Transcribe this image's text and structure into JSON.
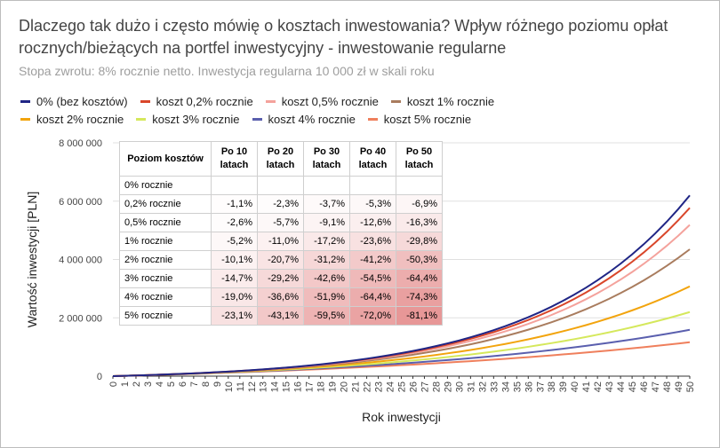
{
  "chart_data": {
    "type": "line",
    "title": "Dlaczego tak dużo i często mówię o kosztach inwestowania? Wpływ różnego poziomu opłat rocznych/bieżących na portfel inwestycyjny - inwestowanie regularne",
    "subtitle": "Stopa zwrotu: 8% rocznie netto. Inwestycja regularna 10 000 zł w skali roku",
    "x_label": "Rok inwestycji",
    "y_label": "Wartość inwestycji [PLN]",
    "x": [
      0,
      1,
      2,
      3,
      4,
      5,
      6,
      7,
      8,
      9,
      10,
      11,
      12,
      13,
      14,
      15,
      16,
      17,
      18,
      19,
      20,
      21,
      22,
      23,
      24,
      25,
      26,
      27,
      28,
      29,
      30,
      31,
      32,
      33,
      34,
      35,
      36,
      37,
      38,
      39,
      40,
      41,
      42,
      43,
      44,
      45,
      46,
      47,
      48,
      49,
      50
    ],
    "xlim": [
      0,
      50
    ],
    "xticks": [
      0,
      1,
      2,
      3,
      4,
      5,
      6,
      7,
      8,
      9,
      10,
      11,
      12,
      13,
      14,
      15,
      16,
      17,
      18,
      19,
      20,
      21,
      22,
      23,
      24,
      25,
      26,
      27,
      28,
      29,
      30,
      31,
      32,
      33,
      34,
      35,
      36,
      37,
      38,
      39,
      40,
      41,
      42,
      43,
      44,
      45,
      46,
      47,
      48,
      49,
      50
    ],
    "ylim": [
      0,
      8000000
    ],
    "yticks": [
      0,
      {
        "value": 2000000,
        "label": "2 000 000"
      },
      {
        "value": 4000000,
        "label": "4 000 000"
      },
      {
        "value": 6000000,
        "label": "6 000 000"
      },
      {
        "value": 8000000,
        "label": "8 000 000"
      }
    ],
    "grid": true,
    "legend": "top",
    "series": [
      {
        "name": "0% (bez kosztów)",
        "color": "#1f2585",
        "values": [
          0,
          11000,
          22000,
          35000,
          49000,
          63000,
          79000,
          96000,
          115000,
          135000,
          156000,
          180000,
          205000,
          232000,
          262000,
          293000,
          328000,
          365000,
          404000,
          448000,
          494000,
          545000,
          599000,
          658000,
          721000,
          790000,
          864000,
          943000,
          1030000,
          1123000,
          1223000,
          1332000,
          1450000,
          1576000,
          1713000,
          1861000,
          2021000,
          2193000,
          2379000,
          2581000,
          2798000,
          3032000,
          3286000,
          3559000,
          3855000,
          4174000,
          4519000,
          4891000,
          5293000,
          5728000,
          6197000
        ]
      },
      {
        "name": "koszt 0,2% rocznie",
        "color": "#d9462a",
        "values": [
          0,
          11000,
          22000,
          35000,
          48000,
          63000,
          79000,
          96000,
          114000,
          133000,
          155000,
          178000,
          202000,
          229000,
          257000,
          288000,
          321000,
          357000,
          396000,
          438000,
          483000,
          531000,
          583000,
          639000,
          700000,
          765000,
          836000,
          912000,
          994000,
          1082000,
          1177000,
          1280000,
          1391000,
          1510000,
          1638000,
          1777000,
          1926000,
          2087000,
          2261000,
          2448000,
          2650000,
          2867000,
          3102000,
          3354000,
          3627000,
          3920000,
          4237000,
          4578000,
          4946000,
          5343000,
          5770000
        ]
      },
      {
        "name": "koszt 0,5% rocznie",
        "color": "#f4a29c",
        "values": [
          0,
          11000,
          22000,
          35000,
          48000,
          62000,
          78000,
          94000,
          112000,
          131000,
          152000,
          174000,
          198000,
          224000,
          251000,
          281000,
          313000,
          347000,
          384000,
          423000,
          466000,
          511000,
          560000,
          613000,
          670000,
          731000,
          796000,
          867000,
          943000,
          1024000,
          1112000,
          1206000,
          1307000,
          1416000,
          1533000,
          1658000,
          1793000,
          1939000,
          2095000,
          2263000,
          2443000,
          2637000,
          2845000,
          3070000,
          3311000,
          3570000,
          3848000,
          4148000,
          4469000,
          4815000,
          5187000
        ]
      },
      {
        "name": "koszt 1% rocznie",
        "color": "#a97c5e",
        "values": [
          0,
          11000,
          22000,
          34000,
          48000,
          62000,
          77000,
          93000,
          110000,
          128000,
          148000,
          169000,
          191000,
          216000,
          241000,
          269000,
          298000,
          330000,
          364000,
          400000,
          439000,
          480000,
          524000,
          572000,
          622000,
          677000,
          735000,
          797000,
          863000,
          935000,
          1011000,
          1092000,
          1179000,
          1273000,
          1372000,
          1479000,
          1593000,
          1716000,
          1846000,
          1986000,
          2136000,
          2296000,
          2468000,
          2651000,
          2847000,
          3058000,
          3282000,
          3523000,
          3780000,
          4055000,
          4350000
        ]
      },
      {
        "name": "koszt 2% rocznie",
        "color": "#f2a40d",
        "values": [
          0,
          11000,
          22000,
          34000,
          46000,
          60000,
          74000,
          89000,
          105000,
          122000,
          140000,
          159000,
          179000,
          200000,
          223000,
          247000,
          272000,
          299000,
          328000,
          358000,
          390000,
          424000,
          460000,
          498000,
          539000,
          582000,
          627000,
          675000,
          726000,
          781000,
          838000,
          899000,
          963000,
          1032000,
          1104000,
          1181000,
          1263000,
          1349000,
          1441000,
          1538000,
          1640000,
          1749000,
          1865000,
          1988000,
          2117000,
          2255000,
          2401000,
          2556000,
          2720000,
          2893000,
          3078000
        ]
      },
      {
        "name": "koszt 3% rocznie",
        "color": "#d5e85c",
        "values": [
          0,
          11000,
          22000,
          33000,
          45000,
          58000,
          71000,
          85000,
          100000,
          116000,
          132000,
          149000,
          167000,
          186000,
          206000,
          227000,
          248000,
          271000,
          295000,
          321000,
          347000,
          375000,
          404000,
          435000,
          467000,
          501000,
          537000,
          574000,
          613000,
          654000,
          698000,
          743000,
          791000,
          841000,
          893000,
          948000,
          1006000,
          1067000,
          1131000,
          1198000,
          1268000,
          1342000,
          1420000,
          1501000,
          1587000,
          1677000,
          1771000,
          1870000,
          1974000,
          2083000,
          2198000
        ]
      },
      {
        "name": "koszt 4% rocznie",
        "color": "#5a5fae",
        "values": [
          0,
          10000,
          21000,
          32000,
          44000,
          56000,
          69000,
          82000,
          96000,
          110000,
          125000,
          140000,
          156000,
          173000,
          190000,
          208000,
          227000,
          246000,
          267000,
          288000,
          310000,
          332000,
          356000,
          381000,
          406000,
          433000,
          461000,
          490000,
          520000,
          551000,
          583000,
          617000,
          652000,
          689000,
          727000,
          766000,
          807000,
          850000,
          894000,
          940000,
          988000,
          1038000,
          1090000,
          1144000,
          1200000,
          1259000,
          1319000,
          1383000,
          1448000,
          1517000,
          1588000
        ]
      },
      {
        "name": "koszt 5% rocznie",
        "color": "#ef7f5c",
        "values": [
          0,
          10000,
          21000,
          32000,
          43000,
          55000,
          67000,
          79000,
          92000,
          105000,
          118000,
          132000,
          146000,
          161000,
          176000,
          192000,
          208000,
          224000,
          241000,
          259000,
          277000,
          295000,
          315000,
          334000,
          355000,
          376000,
          397000,
          419000,
          442000,
          466000,
          490000,
          515000,
          541000,
          567000,
          595000,
          623000,
          652000,
          682000,
          712000,
          744000,
          777000,
          810000,
          845000,
          880000,
          917000,
          955000,
          994000,
          1034000,
          1075000,
          1118000,
          1162000
        ]
      }
    ]
  },
  "table": {
    "header": [
      "Poziom kosztów",
      "Po 10 latach",
      "Po 20 latach",
      "Po 30 latach",
      "Po 40 latach",
      "Po 50 latach"
    ],
    "rows": [
      [
        "0% rocznie"
      ],
      [
        "0,2% rocznie",
        "-1,1%",
        "-2,3%",
        "-3,7%",
        "-5,3%",
        "-6,9%"
      ],
      [
        "0,5% rocznie",
        "-2,6%",
        "-5,7%",
        "-9,1%",
        "-12,6%",
        "-16,3%"
      ],
      [
        "1% rocznie",
        "-5,2%",
        "-11,0%",
        "-17,2%",
        "-23,6%",
        "-29,8%"
      ],
      [
        "2% rocznie",
        "-10,1%",
        "-20,7%",
        "-31,2%",
        "-41,2%",
        "-50,3%"
      ],
      [
        "3% rocznie",
        "-14,7%",
        "-29,2%",
        "-42,6%",
        "-54,5%",
        "-64,4%"
      ],
      [
        "4% rocznie",
        "-19,0%",
        "-36,6%",
        "-51,9%",
        "-64,4%",
        "-74,3%"
      ],
      [
        "5% rocznie",
        "-23,1%",
        "-43,1%",
        "-59,5%",
        "-72,0%",
        "-81,1%"
      ]
    ]
  }
}
